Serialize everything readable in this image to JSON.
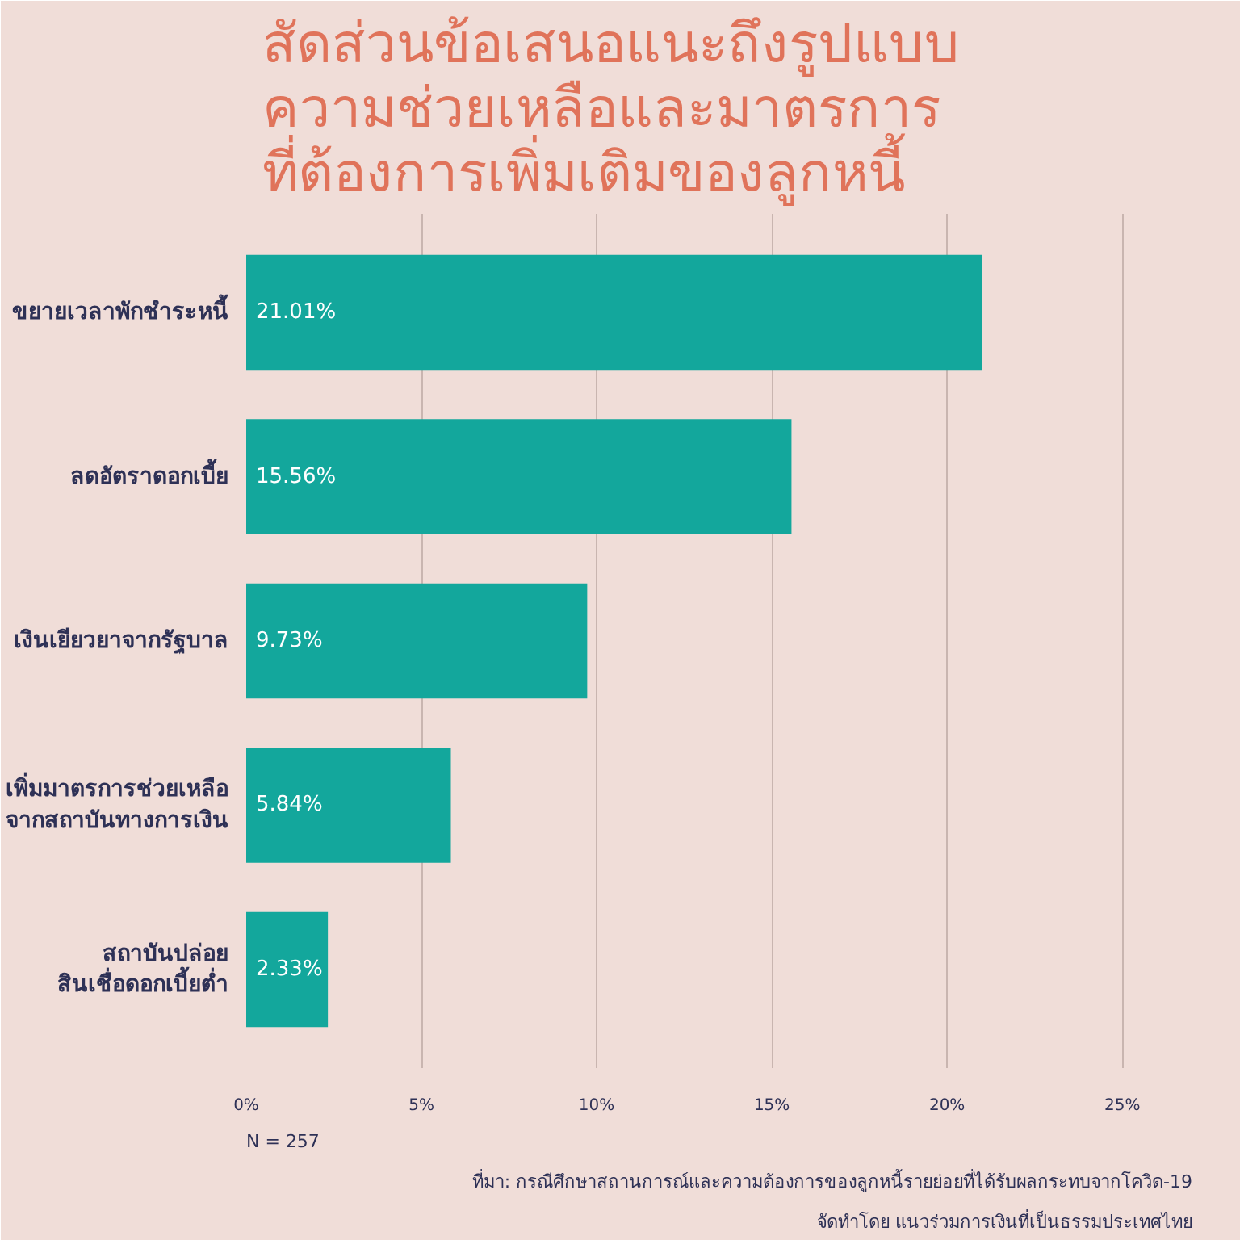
{
  "chart_data": {
    "type": "bar",
    "orientation": "horizontal",
    "title": "สัดส่วนข้อเสนอแนะถึงรูปแบบ\nความช่วยเหลือและมาตรการ\nที่ต้องการเพิ่มเติมของลูกหนี้",
    "categories": [
      "ขยายเวลาพักชำระหนี้",
      "ลดอัตราดอกเบี้ย",
      "เงินเยียวยาจากรัฐบาล",
      "เพิ่มมาตรการช่วยเหลือ\nจากสถาบันทางการเงิน",
      "สถาบันปล่อย\nสินเชื่อดอกเบี้ยต่ำ"
    ],
    "values": [
      21.01,
      15.56,
      9.73,
      5.84,
      2.33
    ],
    "value_labels": [
      "21.01%",
      "15.56%",
      "9.73%",
      "5.84%",
      "2.33%"
    ],
    "color": "#13a79c",
    "xlim": [
      0,
      27
    ],
    "xticks": [
      {
        "value": 0,
        "label": "0%"
      },
      {
        "value": 5,
        "label": "5%"
      },
      {
        "value": 10,
        "label": "10%"
      },
      {
        "value": 15,
        "label": "15%"
      },
      {
        "value": 20,
        "label": "20%"
      },
      {
        "value": 25,
        "label": "25%"
      }
    ],
    "grid": "x",
    "annotations": [
      "N = 257",
      "ที่มา: กรณีศึกษาสถานการณ์และความต้องการของลูกหนี้รายย่อยที่ได้รับผลกระทบจากโควิด-19",
      "จัดทำโดย แนวร่วมการเงินที่เป็นธรรมประเทศไทย"
    ]
  }
}
